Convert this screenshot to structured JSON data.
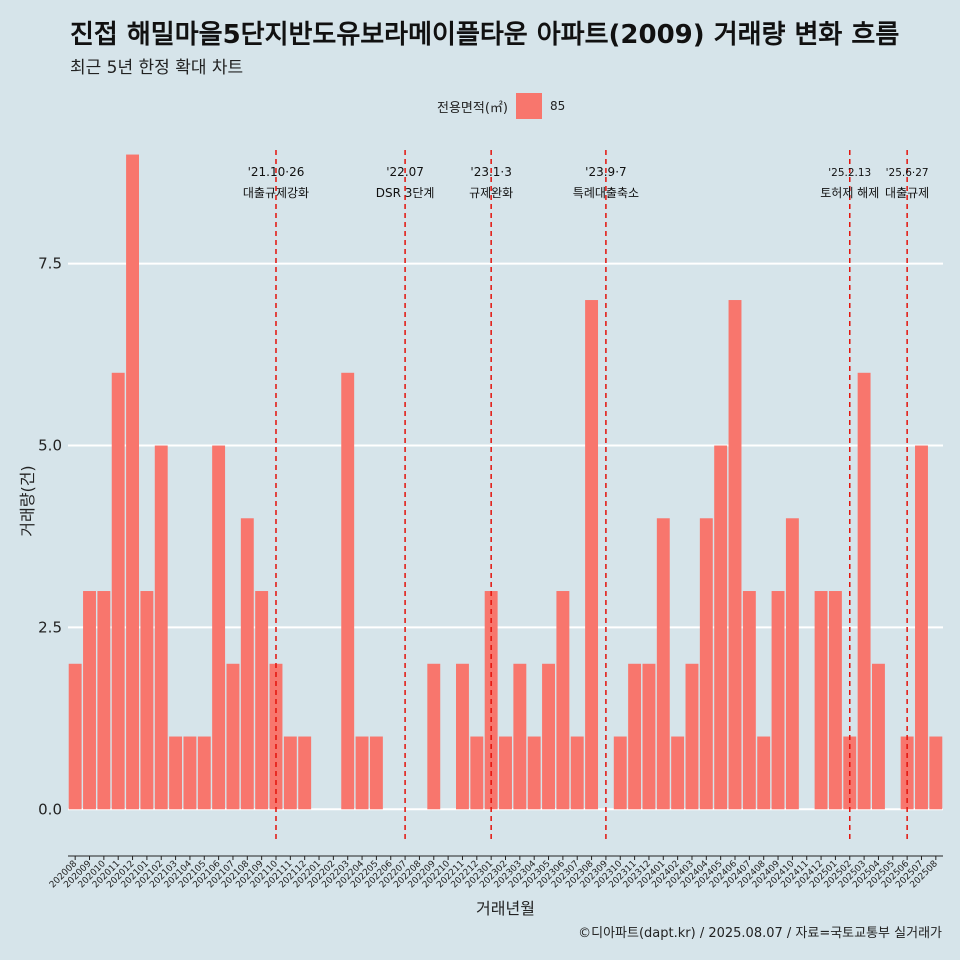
{
  "title": "진접 해밀마을5단지반도유보라메이플타운 아파트(2009) 거래량 변화 흐름",
  "subtitle": "최근 5년 한정 확대 차트",
  "caption": "©디아파트(dapt.kr) / 2025.08.07 / 자료=국토교통부 실거래가",
  "legend": {
    "title": "전용면적(㎡)",
    "entry": "85",
    "color": "#f8766d"
  },
  "chart_data": {
    "type": "bar",
    "xlabel": "거래년월",
    "ylabel": "거래량(건)",
    "ylim": [
      -0.45,
      9.2
    ],
    "yticks": [
      0.0,
      2.5,
      5.0,
      7.5
    ],
    "ytick_labels": [
      "0.0",
      "2.5",
      "5.0",
      "7.5"
    ],
    "grid": true,
    "bar_color": "#f8766d",
    "categories": [
      "202008",
      "202009",
      "202010",
      "202011",
      "202012",
      "202101",
      "202102",
      "202103",
      "202104",
      "202105",
      "202106",
      "202107",
      "202108",
      "202109",
      "202110",
      "202111",
      "202112",
      "202201",
      "202202",
      "202203",
      "202204",
      "202205",
      "202206",
      "202207",
      "202208",
      "202209",
      "202210",
      "202211",
      "202212",
      "202301",
      "202302",
      "202303",
      "202304",
      "202305",
      "202306",
      "202307",
      "202308",
      "202309",
      "202310",
      "202311",
      "202312",
      "202401",
      "202402",
      "202403",
      "202404",
      "202405",
      "202406",
      "202407",
      "202408",
      "202409",
      "202410",
      "202411",
      "202412",
      "202501",
      "202502",
      "202503",
      "202504",
      "202505",
      "202506",
      "202507",
      "202508"
    ],
    "values": [
      2,
      3,
      3,
      6,
      9,
      3,
      5,
      1,
      1,
      1,
      5,
      2,
      4,
      3,
      2,
      1,
      1,
      0,
      0,
      6,
      1,
      1,
      0,
      0,
      0,
      2,
      0,
      2,
      1,
      3,
      1,
      2,
      1,
      2,
      3,
      1,
      7,
      0,
      1,
      2,
      2,
      4,
      1,
      2,
      4,
      5,
      7,
      3,
      1,
      3,
      4,
      0,
      3,
      3,
      1,
      6,
      2,
      0,
      1,
      5,
      1
    ],
    "annotations": [
      {
        "date": "'21.10·26",
        "label": "대출규제강화",
        "x_index": 14.0
      },
      {
        "date": "'22.07",
        "label": "DSR 3단계",
        "x_index": 23.0
      },
      {
        "date": "'23.1·3",
        "label": "규제완화",
        "x_index": 29.0
      },
      {
        "date": "'23.9·7",
        "label": "특례대출축소",
        "x_index": 37.0
      },
      {
        "date": "'25.2.13",
        "label": "토허제 해제",
        "x_index": 54.0
      },
      {
        "date": "'25.6·27",
        "label": "대출규제",
        "x_index": 58.0
      }
    ]
  }
}
